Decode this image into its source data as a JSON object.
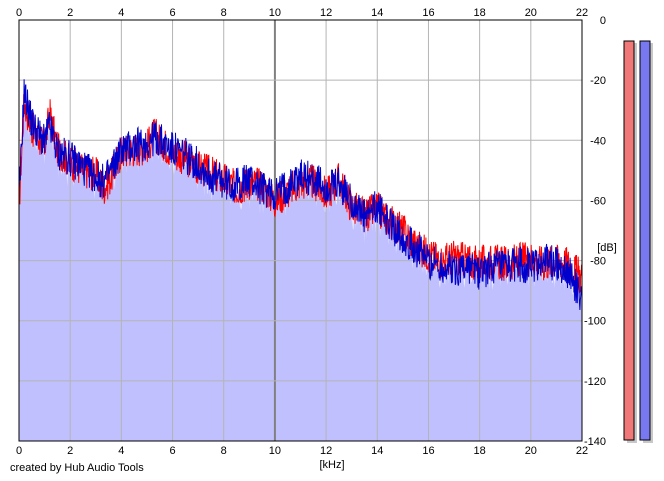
{
  "credit": "created by Hub Audio Tools",
  "colors": {
    "fill": "#c0c0ff",
    "left_channel": "#ff0000",
    "right_channel": "#0000cc",
    "grid": "#b4b4b4",
    "major_grid": "#808080",
    "meter_left": "#f07878",
    "meter_right": "#7878f0"
  },
  "chart_data": {
    "type": "line",
    "title": "",
    "xlabel": "[kHz]",
    "ylabel": "[dB]",
    "xlim": [
      0,
      22
    ],
    "ylim": [
      -140,
      0
    ],
    "x_ticks": [
      "0",
      "2",
      "4",
      "6",
      "8",
      "10",
      "12",
      "14",
      "16",
      "18",
      "20",
      "22"
    ],
    "y_ticks": [
      "0",
      "-20",
      "-40",
      "-60",
      "-80",
      "-100",
      "-120",
      "-140"
    ],
    "grid": true,
    "filled_area": true,
    "series": [
      {
        "name": "",
        "color": "#ff0000",
        "x": [
          0,
          0.2,
          0.5,
          1,
          1.2,
          1.5,
          2,
          2.5,
          3,
          3.3,
          3.6,
          4,
          4.5,
          5,
          5.3,
          6,
          6.5,
          7,
          7.5,
          8,
          8.5,
          9,
          9.5,
          10,
          10.5,
          11,
          11.5,
          12,
          12.5,
          13,
          13.5,
          14,
          14.5,
          15,
          15.5,
          16,
          16.5,
          17,
          17.5,
          18,
          18.5,
          19,
          19.5,
          20,
          20.5,
          21,
          21.5,
          22
        ],
        "values": [
          -62,
          -27,
          -36,
          -42,
          -31,
          -43,
          -47,
          -50,
          -51,
          -56,
          -52,
          -44,
          -43,
          -42,
          -38,
          -44,
          -46,
          -49,
          -51,
          -53,
          -56,
          -54,
          -55,
          -60,
          -57,
          -54,
          -54,
          -58,
          -53,
          -62,
          -65,
          -63,
          -67,
          -70,
          -75,
          -78,
          -80,
          -79,
          -80,
          -81,
          -80,
          -81,
          -80,
          -79,
          -81,
          -80,
          -81,
          -86
        ]
      },
      {
        "name": "",
        "color": "#0000cc",
        "x": [
          0,
          0.2,
          0.5,
          1,
          1.2,
          1.5,
          2,
          2.5,
          3,
          3.3,
          3.6,
          4,
          4.5,
          5,
          5.3,
          6,
          6.5,
          7,
          7.5,
          8,
          8.5,
          9,
          9.5,
          10,
          10.5,
          11,
          11.5,
          12,
          12.5,
          13,
          13.5,
          14,
          14.5,
          15,
          15.5,
          16,
          16.5,
          17,
          17.5,
          18,
          18.5,
          19,
          19.5,
          20,
          20.5,
          21,
          21.5,
          22
        ],
        "values": [
          -60,
          -24,
          -34,
          -41,
          -35,
          -44,
          -46,
          -49,
          -52,
          -54,
          -50,
          -43,
          -42,
          -41,
          -39,
          -43,
          -45,
          -48,
          -52,
          -54,
          -55,
          -53,
          -56,
          -58,
          -55,
          -52,
          -53,
          -56,
          -55,
          -60,
          -66,
          -62,
          -68,
          -72,
          -76,
          -80,
          -82,
          -83,
          -82,
          -84,
          -82,
          -83,
          -81,
          -82,
          -80,
          -81,
          -84,
          -92
        ]
      }
    ],
    "level_meters": [
      {
        "channel": "left",
        "color": "#f07878",
        "level_db": -7
      },
      {
        "channel": "right",
        "color": "#7878f0",
        "level_db": -7
      }
    ]
  }
}
